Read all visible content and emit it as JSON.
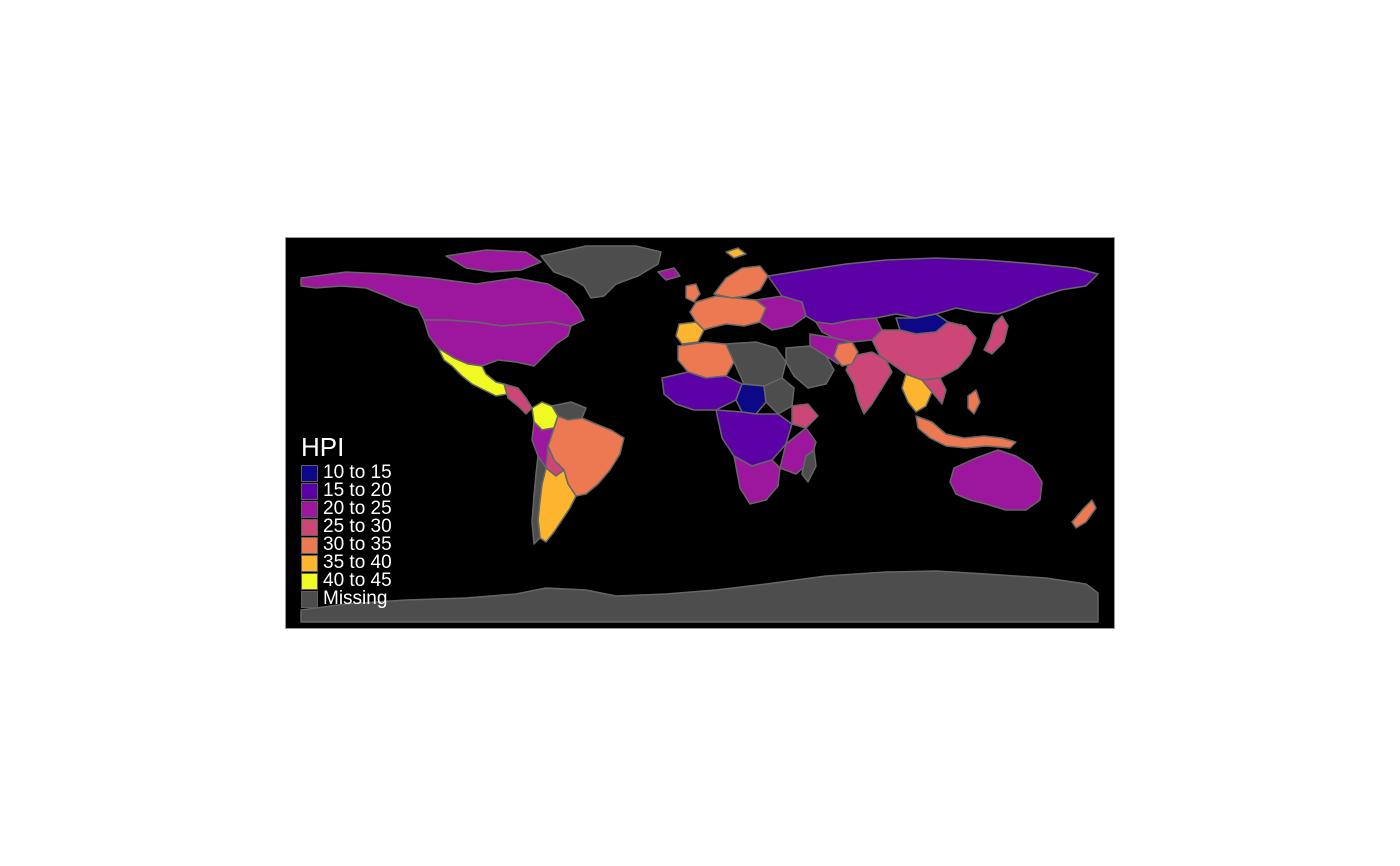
{
  "map": {
    "legend": {
      "title": "HPI",
      "items": [
        {
          "label": "10 to 15",
          "color": "#0d0887"
        },
        {
          "label": "15 to 20",
          "color": "#5c01a6"
        },
        {
          "label": "20 to 25",
          "color": "#9c179e"
        },
        {
          "label": "25 to 30",
          "color": "#cc4778"
        },
        {
          "label": "30 to 35",
          "color": "#ed7953"
        },
        {
          "label": "35 to 40",
          "color": "#fdb42f"
        },
        {
          "label": "40 to 45",
          "color": "#f0f921"
        },
        {
          "label": "Missing",
          "color": "#4d4d4d"
        }
      ]
    },
    "background_color": "#000000",
    "border_color": "#666666"
  }
}
